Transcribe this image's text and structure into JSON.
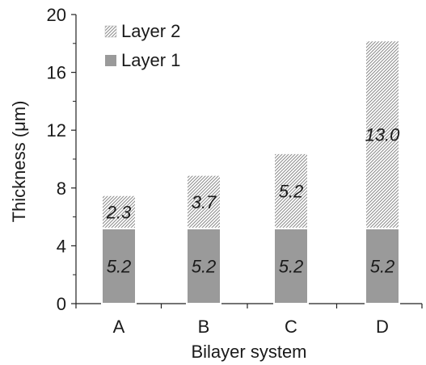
{
  "chart_data": {
    "type": "bar",
    "stacked": true,
    "categories": [
      "A",
      "B",
      "C",
      "D"
    ],
    "series": [
      {
        "name": "Layer 1",
        "values": [
          5.2,
          5.2,
          5.2,
          5.2
        ],
        "labels": [
          "5.2",
          "5.2",
          "5.2",
          "5.2"
        ],
        "fill": "#9a9a9a",
        "pattern": "solid"
      },
      {
        "name": "Layer 2",
        "values": [
          2.3,
          3.7,
          5.2,
          13.0
        ],
        "labels": [
          "2.3",
          "3.7",
          "5.2",
          "13.0"
        ],
        "fill": "#ffffff",
        "pattern": "diagonal-hatch"
      }
    ],
    "xlabel": "Bilayer system",
    "ylabel": "Thickness (μm)",
    "ylim": [
      0,
      20
    ],
    "yticks": [
      0,
      4,
      8,
      12,
      16,
      20
    ],
    "ytick_labels": [
      "0",
      "4",
      "8",
      "12",
      "16",
      "20"
    ],
    "grid": false,
    "legend_position": "top-left",
    "legend_order": [
      "Layer 2",
      "Layer 1"
    ],
    "axis_color": "#222222",
    "text_color": "#1a1a1a"
  }
}
